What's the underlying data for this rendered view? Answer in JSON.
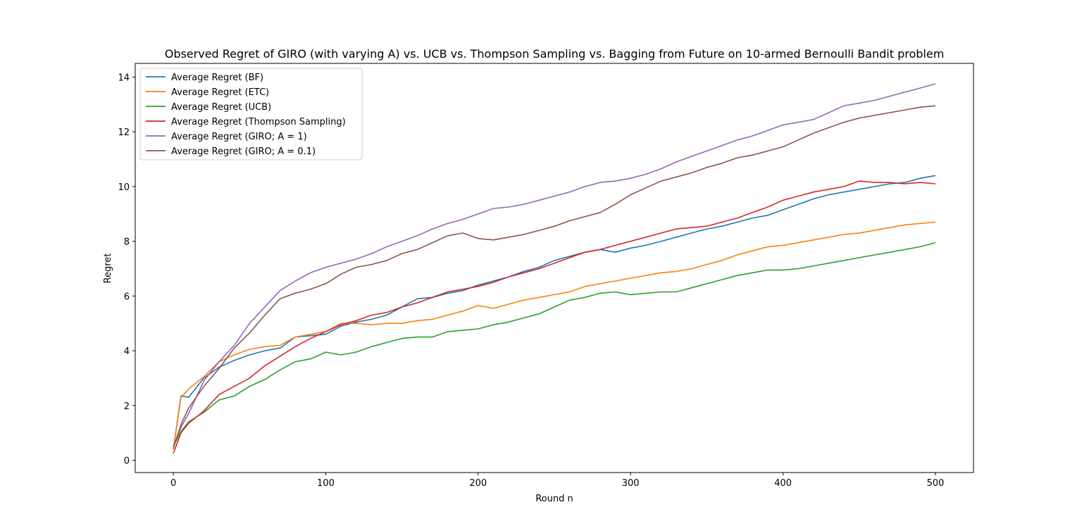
{
  "chart_data": {
    "type": "line",
    "title": "Observed Regret of GIRO (with varying A) vs. UCB vs. Thompson Sampling vs. Bagging from Future on 10-armed Bernoulli Bandit problem",
    "xlabel": "Round n",
    "ylabel": "Regret",
    "xlim": [
      -25,
      525
    ],
    "ylim": [
      -0.45,
      14.5
    ],
    "xticks": [
      0,
      100,
      200,
      300,
      400,
      500
    ],
    "yticks": [
      0,
      2,
      4,
      6,
      8,
      10,
      12,
      14
    ],
    "grid": false,
    "legend_position": "top-left",
    "x": [
      0,
      5,
      10,
      20,
      30,
      40,
      50,
      60,
      70,
      80,
      90,
      100,
      110,
      120,
      130,
      140,
      150,
      160,
      170,
      180,
      190,
      200,
      210,
      220,
      230,
      240,
      250,
      260,
      270,
      280,
      290,
      300,
      310,
      320,
      330,
      340,
      350,
      360,
      370,
      380,
      390,
      400,
      410,
      420,
      430,
      440,
      450,
      460,
      470,
      480,
      490,
      500
    ],
    "series": [
      {
        "name": "Average Regret (BF)",
        "color": "#1f77b4",
        "values": [
          0.4,
          2.35,
          2.3,
          3.0,
          3.4,
          3.65,
          3.85,
          4.0,
          4.1,
          4.5,
          4.55,
          4.6,
          4.9,
          5.05,
          5.15,
          5.3,
          5.6,
          5.9,
          5.95,
          6.1,
          6.2,
          6.4,
          6.55,
          6.7,
          6.9,
          7.05,
          7.3,
          7.45,
          7.6,
          7.7,
          7.6,
          7.75,
          7.85,
          8.0,
          8.15,
          8.3,
          8.45,
          8.55,
          8.7,
          8.85,
          8.95,
          9.15,
          9.35,
          9.55,
          9.7,
          9.8,
          9.9,
          10.0,
          10.1,
          10.15,
          10.3,
          10.4
        ]
      },
      {
        "name": "Average Regret (ETC)",
        "color": "#ff7f0e",
        "values": [
          0.4,
          2.3,
          2.6,
          3.05,
          3.6,
          3.85,
          4.05,
          4.15,
          4.2,
          4.5,
          4.6,
          4.7,
          5.0,
          5.0,
          4.95,
          5.0,
          5.0,
          5.1,
          5.15,
          5.3,
          5.45,
          5.65,
          5.55,
          5.7,
          5.85,
          5.95,
          6.05,
          6.15,
          6.35,
          6.45,
          6.55,
          6.65,
          6.75,
          6.85,
          6.9,
          7.0,
          7.15,
          7.3,
          7.5,
          7.65,
          7.8,
          7.85,
          7.95,
          8.05,
          8.15,
          8.25,
          8.3,
          8.4,
          8.5,
          8.6,
          8.65,
          8.7
        ]
      },
      {
        "name": "Average Regret (UCB)",
        "color": "#2ca02c",
        "values": [
          0.5,
          1.05,
          1.4,
          1.75,
          2.2,
          2.35,
          2.7,
          2.95,
          3.3,
          3.6,
          3.7,
          3.95,
          3.85,
          3.95,
          4.15,
          4.3,
          4.45,
          4.5,
          4.5,
          4.7,
          4.75,
          4.8,
          4.95,
          5.05,
          5.2,
          5.35,
          5.6,
          5.85,
          5.95,
          6.1,
          6.15,
          6.05,
          6.1,
          6.15,
          6.15,
          6.3,
          6.45,
          6.6,
          6.75,
          6.85,
          6.95,
          6.95,
          7.0,
          7.1,
          7.2,
          7.3,
          7.4,
          7.5,
          7.6,
          7.7,
          7.8,
          7.95
        ]
      },
      {
        "name": "Average Regret (Thompson Sampling)",
        "color": "#d62728",
        "values": [
          0.25,
          1.0,
          1.35,
          1.8,
          2.4,
          2.7,
          3.0,
          3.45,
          3.8,
          4.15,
          4.45,
          4.7,
          4.95,
          5.1,
          5.3,
          5.4,
          5.6,
          5.75,
          5.95,
          6.15,
          6.25,
          6.35,
          6.5,
          6.7,
          6.85,
          7.0,
          7.2,
          7.4,
          7.6,
          7.7,
          7.85,
          8.0,
          8.15,
          8.3,
          8.45,
          8.5,
          8.55,
          8.7,
          8.85,
          9.05,
          9.25,
          9.5,
          9.65,
          9.8,
          9.9,
          10.0,
          10.2,
          10.15,
          10.15,
          10.1,
          10.15,
          10.1
        ]
      },
      {
        "name": "Average Regret (GIRO; A = 1)",
        "color": "#9467bd",
        "values": [
          0.5,
          1.2,
          1.7,
          2.9,
          3.6,
          4.2,
          5.0,
          5.6,
          6.2,
          6.55,
          6.85,
          7.05,
          7.2,
          7.35,
          7.55,
          7.8,
          8.0,
          8.2,
          8.45,
          8.65,
          8.8,
          9.0,
          9.2,
          9.25,
          9.35,
          9.5,
          9.65,
          9.8,
          10.0,
          10.15,
          10.2,
          10.3,
          10.45,
          10.65,
          10.9,
          11.1,
          11.3,
          11.5,
          11.7,
          11.85,
          12.05,
          12.25,
          12.35,
          12.45,
          12.7,
          12.95,
          13.05,
          13.15,
          13.3,
          13.45,
          13.6,
          13.75
        ]
      },
      {
        "name": "Average Regret (GIRO; A = 0.1)",
        "color": "#8c564b",
        "values": [
          0.45,
          1.3,
          1.9,
          2.7,
          3.35,
          4.1,
          4.65,
          5.3,
          5.9,
          6.1,
          6.25,
          6.45,
          6.8,
          7.05,
          7.15,
          7.3,
          7.55,
          7.7,
          7.95,
          8.2,
          8.3,
          8.1,
          8.05,
          8.15,
          8.25,
          8.4,
          8.55,
          8.75,
          8.9,
          9.05,
          9.35,
          9.7,
          9.95,
          10.2,
          10.35,
          10.5,
          10.7,
          10.85,
          11.05,
          11.15,
          11.3,
          11.45,
          11.7,
          11.95,
          12.15,
          12.35,
          12.5,
          12.6,
          12.7,
          12.8,
          12.9,
          12.95
        ]
      }
    ]
  }
}
